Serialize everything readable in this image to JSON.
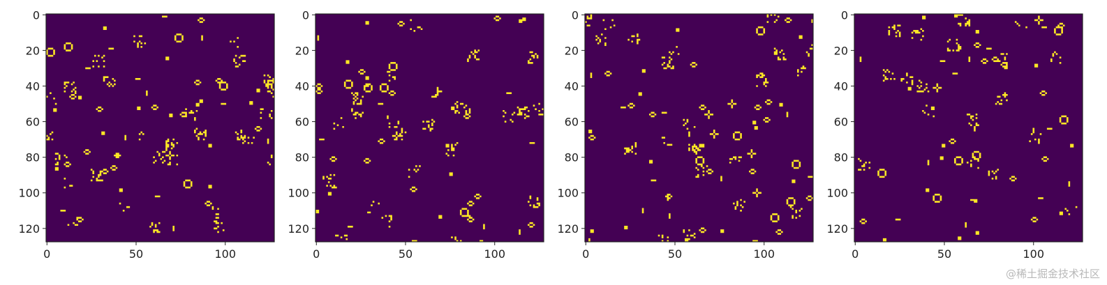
{
  "chart_data": [
    {
      "type": "heatmap",
      "grid_size": 128,
      "colors": {
        "background": "#440154",
        "foreground": "#fde725",
        "frame": "#222222"
      },
      "xticks": [
        0,
        50,
        100
      ],
      "yticks": [
        0,
        20,
        40,
        60,
        80,
        100,
        120
      ],
      "xlim": [
        -0.5,
        127.5
      ],
      "ylim": [
        127.5,
        -0.5
      ],
      "description": "binary cellular-automaton state, yellow = alive",
      "seed": 11
    },
    {
      "type": "heatmap",
      "grid_size": 128,
      "colors": {
        "background": "#440154",
        "foreground": "#fde725",
        "frame": "#222222"
      },
      "xticks": [
        0,
        50,
        100
      ],
      "yticks": [
        0,
        20,
        40,
        60,
        80,
        100,
        120
      ],
      "xlim": [
        -0.5,
        127.5
      ],
      "ylim": [
        127.5,
        -0.5
      ],
      "description": "binary cellular-automaton state, yellow = alive",
      "seed": 23
    },
    {
      "type": "heatmap",
      "grid_size": 128,
      "colors": {
        "background": "#440154",
        "foreground": "#fde725",
        "frame": "#222222"
      },
      "xticks": [
        0,
        50,
        100
      ],
      "yticks": [
        0,
        20,
        40,
        60,
        80,
        100,
        120
      ],
      "xlim": [
        -0.5,
        127.5
      ],
      "ylim": [
        127.5,
        -0.5
      ],
      "description": "binary cellular-automaton state, yellow = alive",
      "seed": 37
    },
    {
      "type": "heatmap",
      "grid_size": 128,
      "colors": {
        "background": "#440154",
        "foreground": "#fde725",
        "frame": "#222222"
      },
      "xticks": [
        0,
        50,
        100
      ],
      "yticks": [
        0,
        20,
        40,
        60,
        80,
        100,
        120
      ],
      "xlim": [
        -0.5,
        127.5
      ],
      "ylim": [
        127.5,
        -0.5
      ],
      "description": "binary cellular-automaton state, yellow = alive",
      "seed": 53
    }
  ],
  "watermark": "@稀土掘金技术社区"
}
